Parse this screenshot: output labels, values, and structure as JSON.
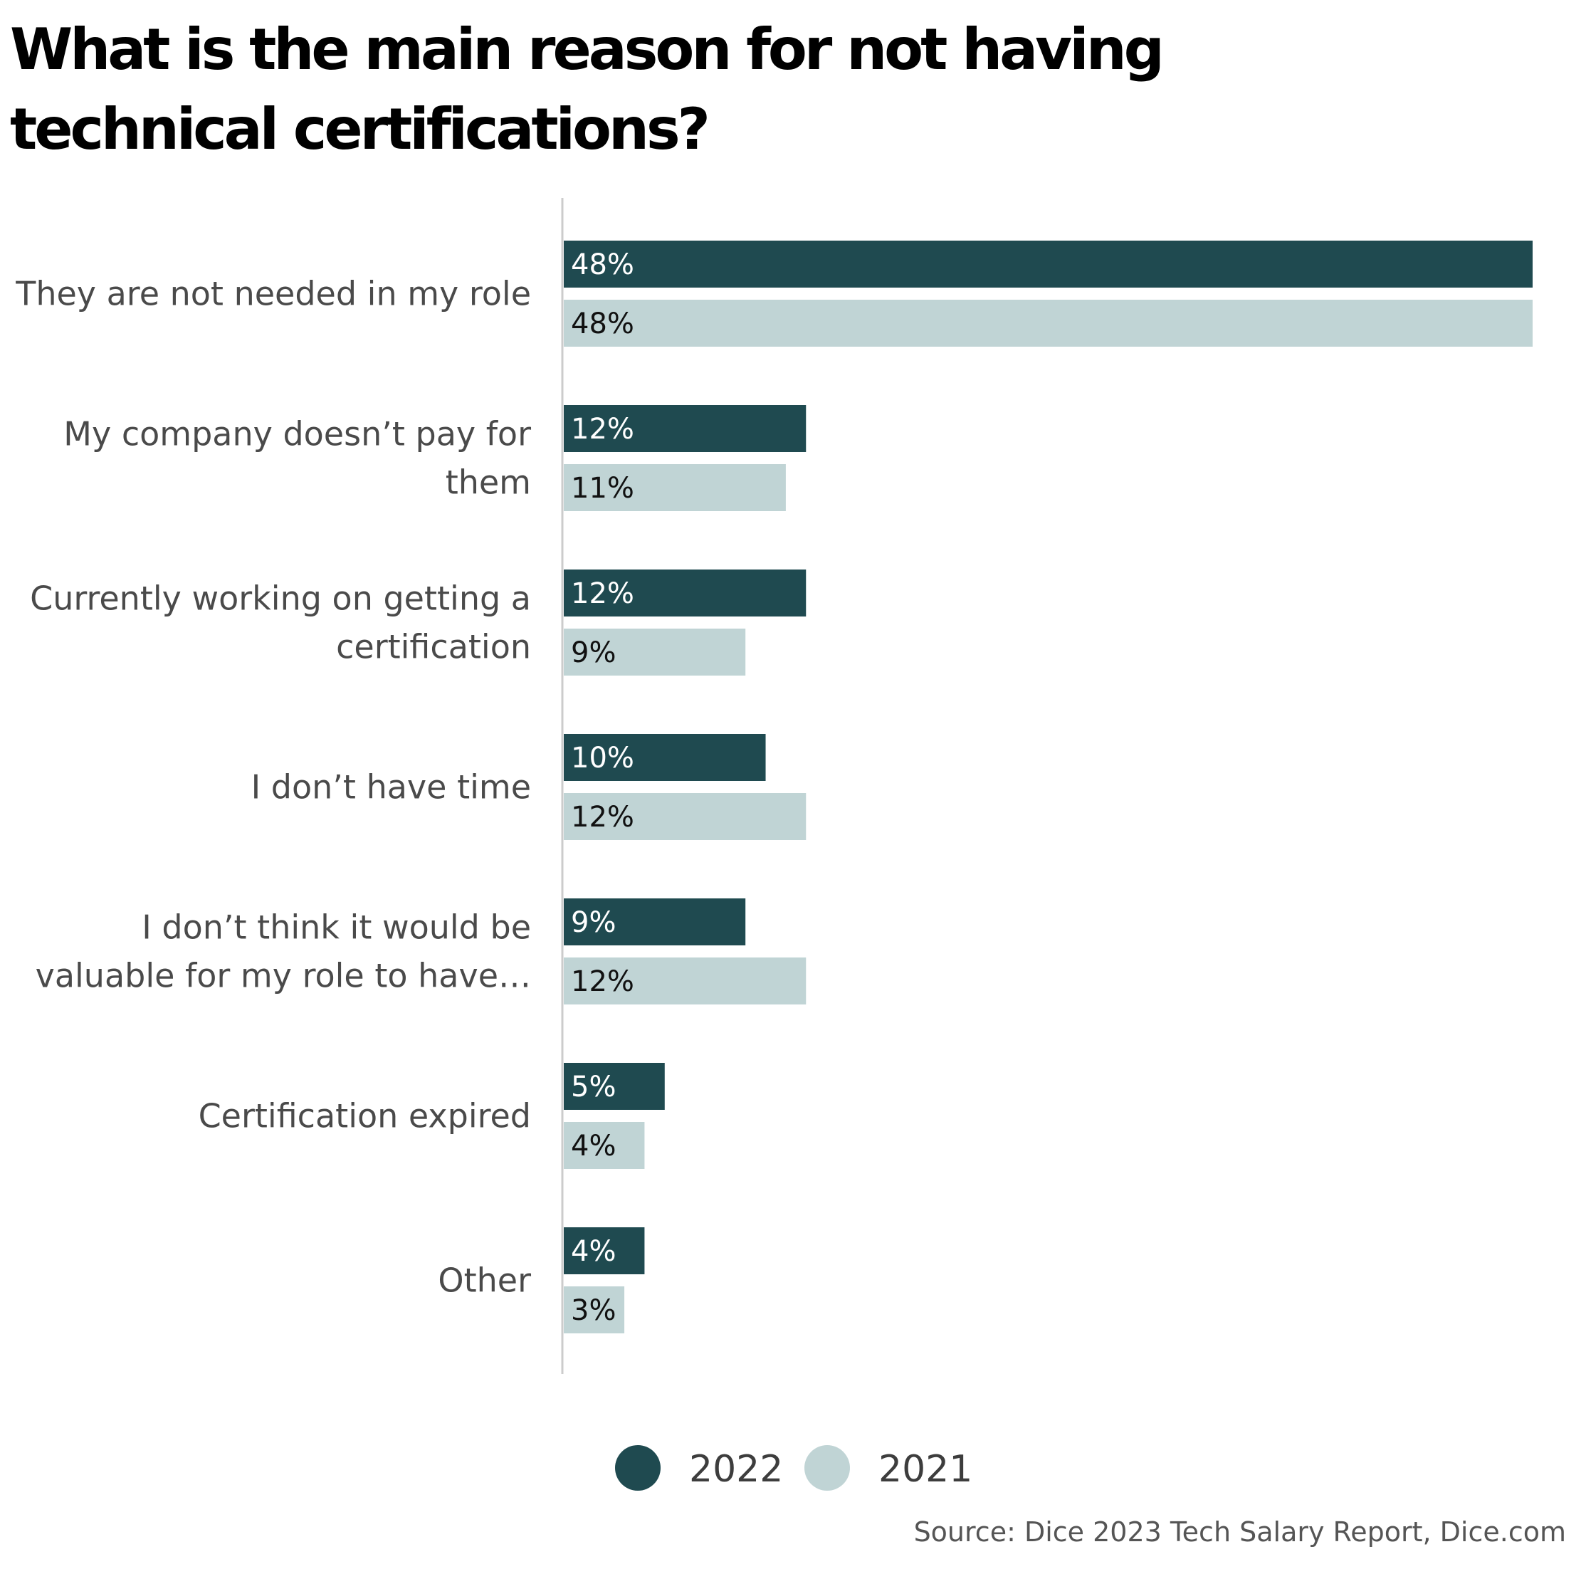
{
  "title": "What is the main reason for not having technical certifications?",
  "source": "Source: Dice 2023 Tech Salary Report, Dice.com",
  "colors": {
    "series_2022": "#1f4a50",
    "series_2021": "#c0d4d5",
    "axis": "#cccccc",
    "label_on_dark": "#ffffff",
    "label_on_light": "#111111"
  },
  "chart_data": {
    "type": "bar",
    "orientation": "horizontal",
    "categories": [
      [
        "They are not needed in my role"
      ],
      [
        "My company doesn’t pay for",
        "them"
      ],
      [
        "Currently working on getting a",
        "certification"
      ],
      [
        "I don’t have time"
      ],
      [
        "I don’t think it would be",
        "valuable for my role to have…"
      ],
      [
        "Certification expired"
      ],
      [
        "Other"
      ]
    ],
    "series": [
      {
        "name": "2022",
        "values": [
          48,
          12,
          12,
          10,
          9,
          5,
          4
        ],
        "labels": [
          "48%",
          "12%",
          "12%",
          "10%",
          "9%",
          "5%",
          "4%"
        ]
      },
      {
        "name": "2021",
        "values": [
          48,
          11,
          9,
          12,
          12,
          4,
          3
        ],
        "labels": [
          "48%",
          "11%",
          "9%",
          "12%",
          "12%",
          "4%",
          "3%"
        ]
      }
    ],
    "unit": "%",
    "xlim": [
      0,
      48
    ],
    "grid": false,
    "legend_position": "bottom-center"
  }
}
